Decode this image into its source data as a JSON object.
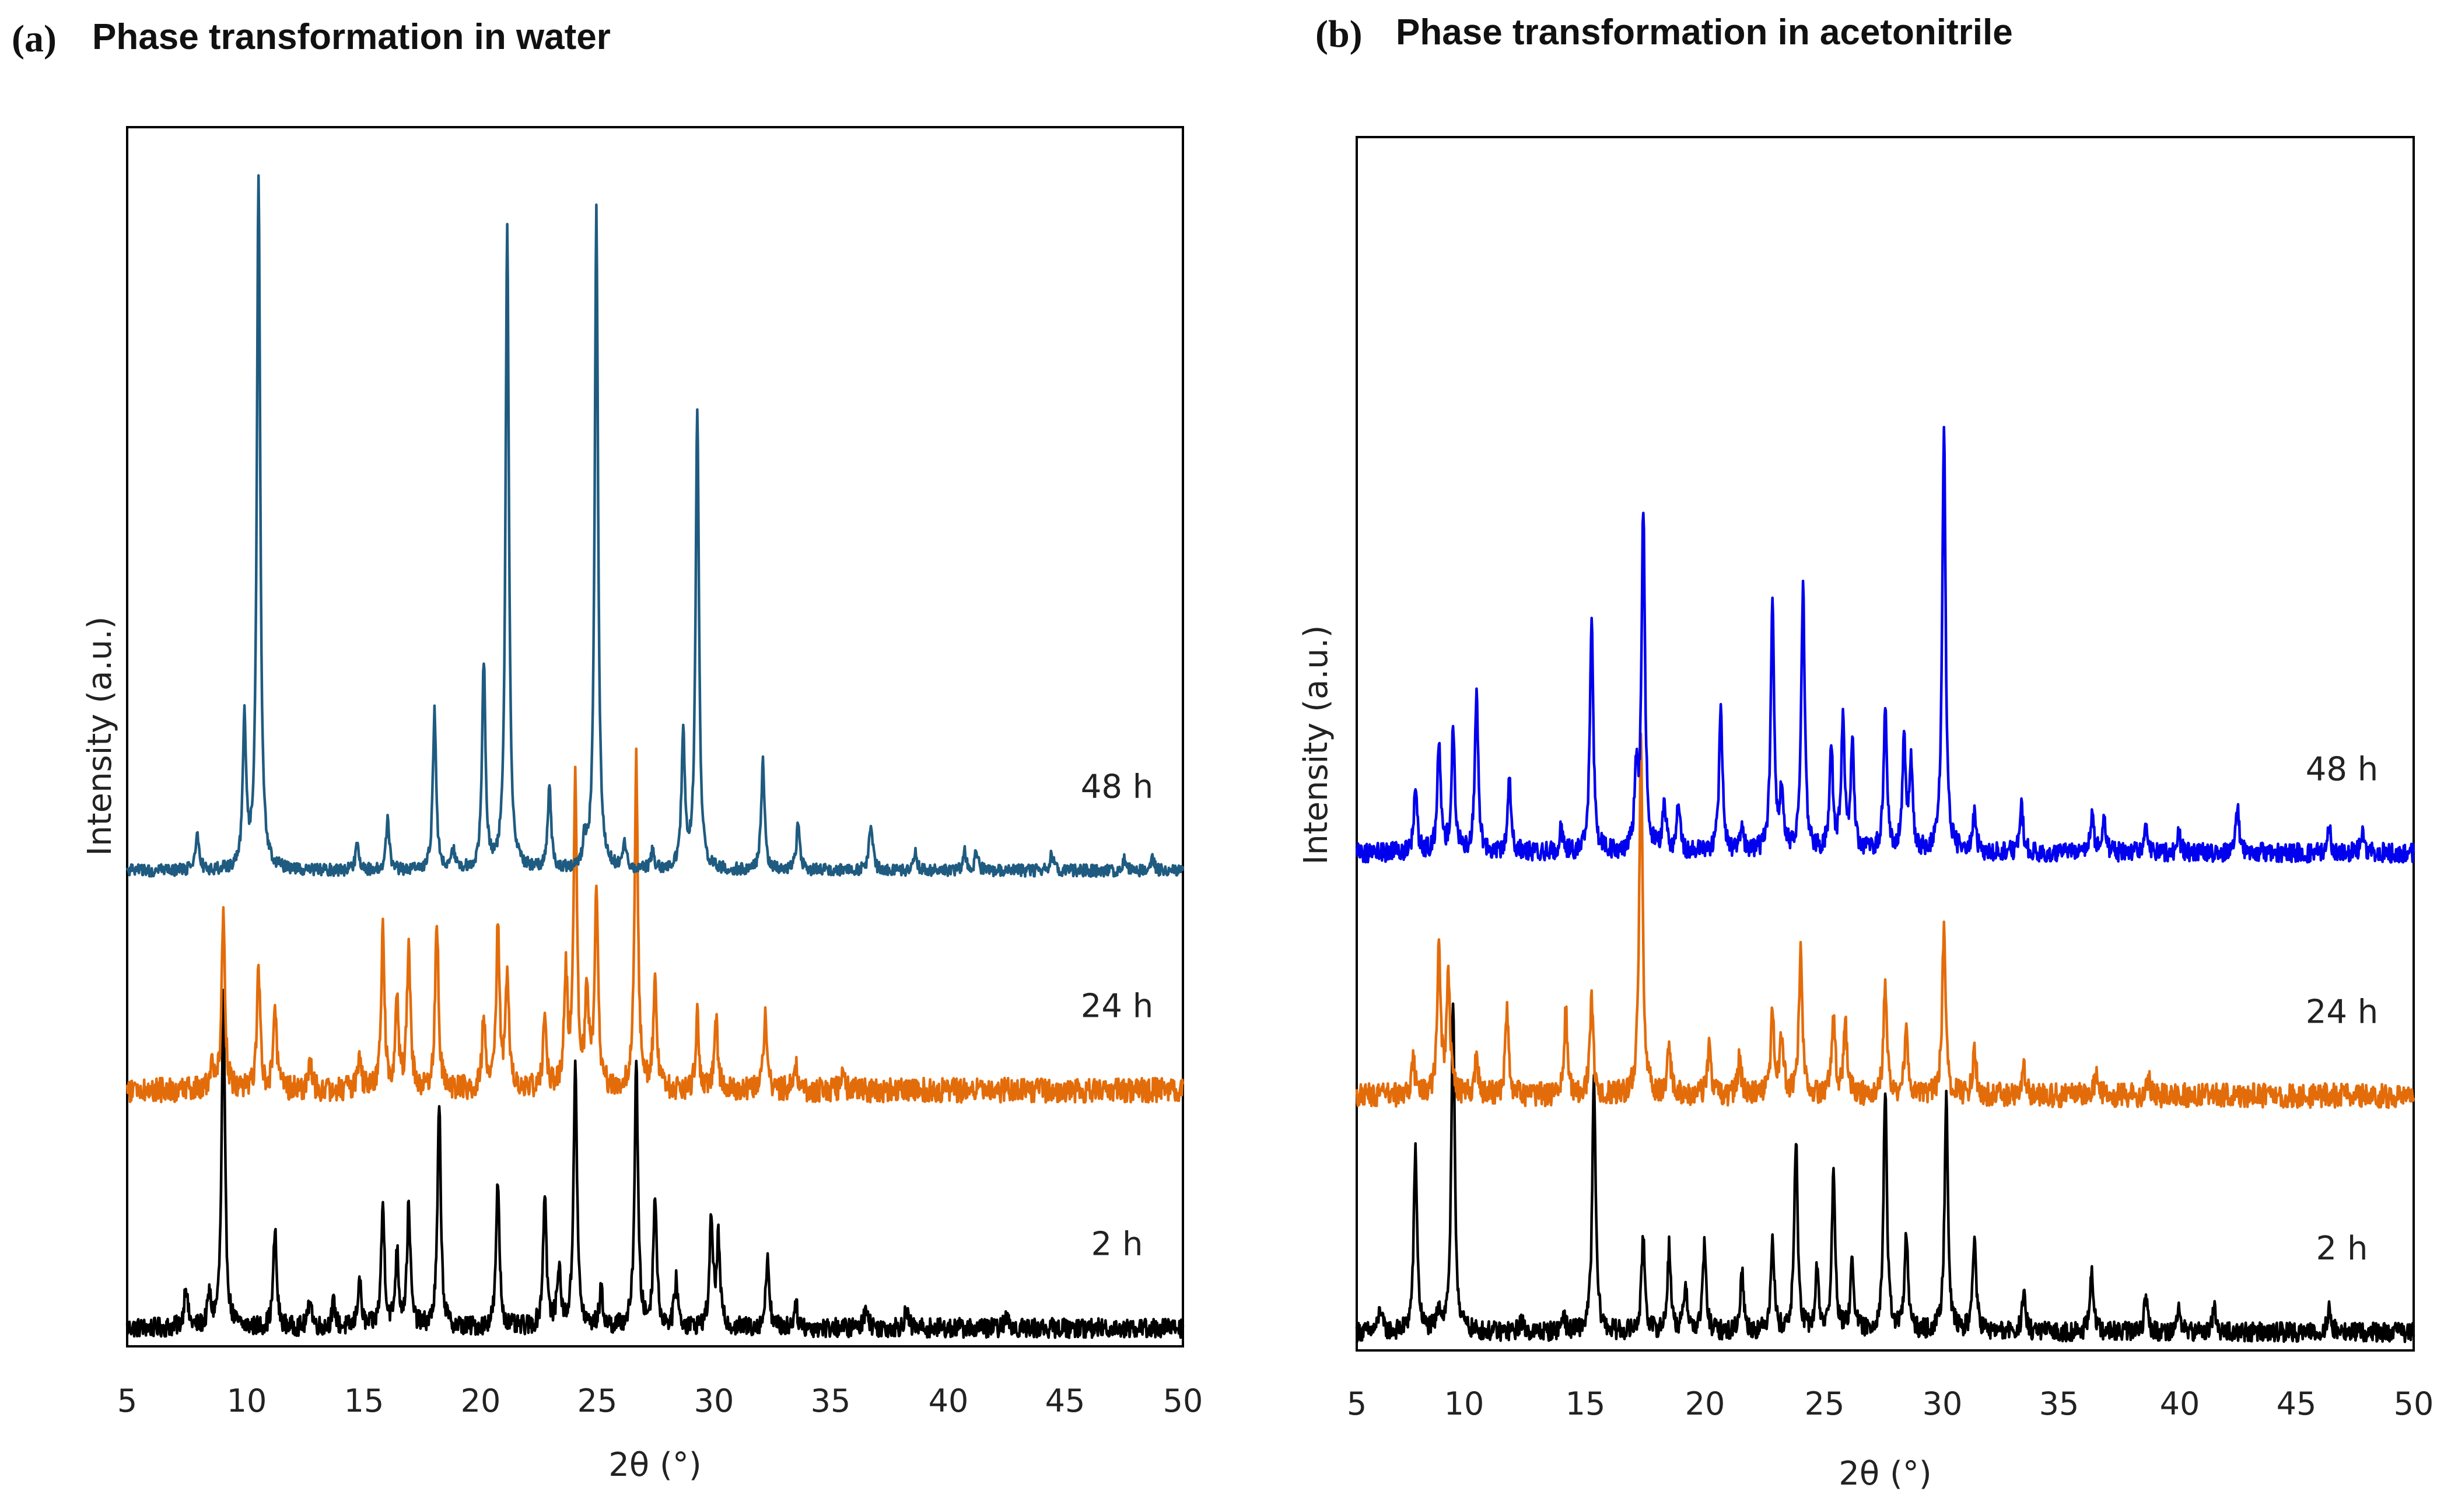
{
  "chart_data": [
    {
      "type": "line",
      "panel_letter": "(a)",
      "title": "Phase transformation in water",
      "xlabel": "2θ (°)",
      "ylabel": "Intensity (a.u.)",
      "xlim": [
        5,
        50
      ],
      "ylim": [
        0,
        100
      ],
      "xticks": [
        "5",
        "10",
        "15",
        "20",
        "25",
        "30",
        "35",
        "40",
        "45",
        "50"
      ],
      "yticks": [],
      "grid": false,
      "legend": "none",
      "series": [
        {
          "name": "2 h",
          "color": "#000000",
          "baseline": 1.5,
          "noise": 0.8,
          "peaks": [
            [
              7.5,
              3.5
            ],
            [
              8.5,
              2.5
            ],
            [
              9.1,
              27
            ],
            [
              11.3,
              8
            ],
            [
              12.8,
              2.5
            ],
            [
              13.8,
              2
            ],
            [
              14.9,
              4
            ],
            [
              15.9,
              10
            ],
            [
              16.5,
              6
            ],
            [
              17.0,
              10
            ],
            [
              18.3,
              18
            ],
            [
              20.8,
              12
            ],
            [
              22.8,
              11
            ],
            [
              23.4,
              5
            ],
            [
              24.1,
              22
            ],
            [
              25.2,
              3
            ],
            [
              26.7,
              22
            ],
            [
              27.5,
              11
            ],
            [
              28.4,
              4
            ],
            [
              29.9,
              9
            ],
            [
              30.2,
              7
            ],
            [
              32.3,
              6
            ],
            [
              33.5,
              2
            ],
            [
              36.5,
              2
            ],
            [
              38.2,
              1.5
            ],
            [
              42.5,
              1
            ]
          ]
        },
        {
          "name": "24 h",
          "color": "#E36C0A",
          "baseline": 21,
          "noise": 1.0,
          "peaks": [
            [
              8.6,
              2
            ],
            [
              9.1,
              14
            ],
            [
              10.6,
              10
            ],
            [
              11.3,
              7
            ],
            [
              12.8,
              2
            ],
            [
              14.9,
              3
            ],
            [
              15.9,
              13
            ],
            [
              16.5,
              7
            ],
            [
              17.0,
              12
            ],
            [
              18.2,
              14
            ],
            [
              20.2,
              6
            ],
            [
              20.8,
              13
            ],
            [
              21.2,
              9
            ],
            [
              22.8,
              6
            ],
            [
              23.7,
              9
            ],
            [
              24.1,
              25
            ],
            [
              24.6,
              8
            ],
            [
              25.0,
              17
            ],
            [
              26.7,
              27
            ],
            [
              27.5,
              9
            ],
            [
              29.3,
              6
            ],
            [
              30.1,
              6
            ],
            [
              32.2,
              6
            ],
            [
              33.5,
              2
            ],
            [
              35.5,
              1.5
            ]
          ]
        },
        {
          "name": "48 h",
          "color": "#1F5B80",
          "baseline": 39,
          "noise": 0.5,
          "peaks": [
            [
              8.0,
              3
            ],
            [
              10.0,
              12
            ],
            [
              10.6,
              57
            ],
            [
              14.8,
              2
            ],
            [
              16.1,
              4
            ],
            [
              18.1,
              13
            ],
            [
              18.9,
              1.5
            ],
            [
              20.2,
              17
            ],
            [
              21.2,
              53
            ],
            [
              23.0,
              7
            ],
            [
              24.5,
              2
            ],
            [
              25.0,
              54
            ],
            [
              26.2,
              2
            ],
            [
              27.4,
              1.5
            ],
            [
              28.7,
              11
            ],
            [
              29.3,
              38
            ],
            [
              32.1,
              9
            ],
            [
              33.6,
              4
            ],
            [
              36.7,
              4
            ],
            [
              38.6,
              1.5
            ],
            [
              40.7,
              1.5
            ],
            [
              41.2,
              1.5
            ],
            [
              44.4,
              1.5
            ],
            [
              47.5,
              1
            ],
            [
              48.7,
              1
            ]
          ]
        }
      ]
    },
    {
      "type": "line",
      "panel_letter": "(b)",
      "title": "Phase transformation in acetonitrile",
      "xlabel": "2θ (°)",
      "ylabel": "Intensity (a.u.)",
      "xlim": [
        5,
        50
      ],
      "ylim": [
        0,
        100
      ],
      "xticks": [
        "5",
        "10",
        "15",
        "20",
        "25",
        "30",
        "35",
        "40",
        "45",
        "50"
      ],
      "yticks": [],
      "grid": false,
      "legend": "none",
      "series": [
        {
          "name": "2 h",
          "color": "#000000",
          "baseline": 1.5,
          "noise": 0.8,
          "peaks": [
            [
              6.0,
              2
            ],
            [
              7.5,
              15
            ],
            [
              8.5,
              2
            ],
            [
              9.1,
              27
            ],
            [
              12.0,
              1
            ],
            [
              13.8,
              1.5
            ],
            [
              15.1,
              21
            ],
            [
              17.2,
              8
            ],
            [
              18.3,
              7
            ],
            [
              19.0,
              4
            ],
            [
              19.8,
              7
            ],
            [
              21.4,
              5
            ],
            [
              22.7,
              8
            ],
            [
              23.7,
              16
            ],
            [
              24.6,
              5
            ],
            [
              25.3,
              13
            ],
            [
              26.1,
              6
            ],
            [
              27.5,
              20
            ],
            [
              28.4,
              8
            ],
            [
              30.1,
              20
            ],
            [
              31.3,
              8
            ],
            [
              33.4,
              3
            ],
            [
              36.3,
              5
            ],
            [
              38.6,
              3
            ],
            [
              40.0,
              2
            ],
            [
              41.5,
              2
            ],
            [
              46.4,
              2
            ]
          ]
        },
        {
          "name": "24 h",
          "color": "#E36C0A",
          "baseline": 21,
          "noise": 1.0,
          "peaks": [
            [
              7.4,
              3
            ],
            [
              8.5,
              12
            ],
            [
              8.9,
              10
            ],
            [
              10.1,
              3
            ],
            [
              11.4,
              7
            ],
            [
              13.9,
              7
            ],
            [
              15.0,
              8
            ],
            [
              17.1,
              29
            ],
            [
              18.3,
              4
            ],
            [
              20.0,
              4
            ],
            [
              21.3,
              3
            ],
            [
              22.7,
              7
            ],
            [
              23.1,
              5
            ],
            [
              23.9,
              12
            ],
            [
              25.3,
              7
            ],
            [
              25.8,
              6
            ],
            [
              27.5,
              9
            ],
            [
              28.4,
              5
            ],
            [
              30.0,
              14
            ],
            [
              31.3,
              4
            ],
            [
              33.4,
              2
            ],
            [
              36.5,
              2
            ],
            [
              38.7,
              1.5
            ]
          ]
        },
        {
          "name": "48 h",
          "color": "#0000EE",
          "baseline": 41,
          "noise": 0.8,
          "peaks": [
            [
              7.5,
              5
            ],
            [
              8.5,
              9
            ],
            [
              9.1,
              10
            ],
            [
              10.1,
              13
            ],
            [
              11.5,
              6
            ],
            [
              13.7,
              2
            ],
            [
              15.0,
              19
            ],
            [
              16.9,
              6
            ],
            [
              17.2,
              28
            ],
            [
              18.1,
              4
            ],
            [
              18.7,
              4
            ],
            [
              20.5,
              12
            ],
            [
              21.4,
              2
            ],
            [
              22.7,
              21
            ],
            [
              23.1,
              5
            ],
            [
              24.0,
              22
            ],
            [
              25.2,
              9
            ],
            [
              25.7,
              11
            ],
            [
              26.1,
              9
            ],
            [
              27.5,
              12
            ],
            [
              28.3,
              9
            ],
            [
              28.6,
              7
            ],
            [
              30.0,
              35
            ],
            [
              31.3,
              3
            ],
            [
              33.3,
              4
            ],
            [
              36.3,
              3
            ],
            [
              36.8,
              3
            ],
            [
              38.6,
              2
            ],
            [
              40.0,
              1.5
            ],
            [
              42.5,
              4
            ],
            [
              46.4,
              2
            ],
            [
              47.8,
              1.5
            ]
          ]
        }
      ]
    }
  ]
}
